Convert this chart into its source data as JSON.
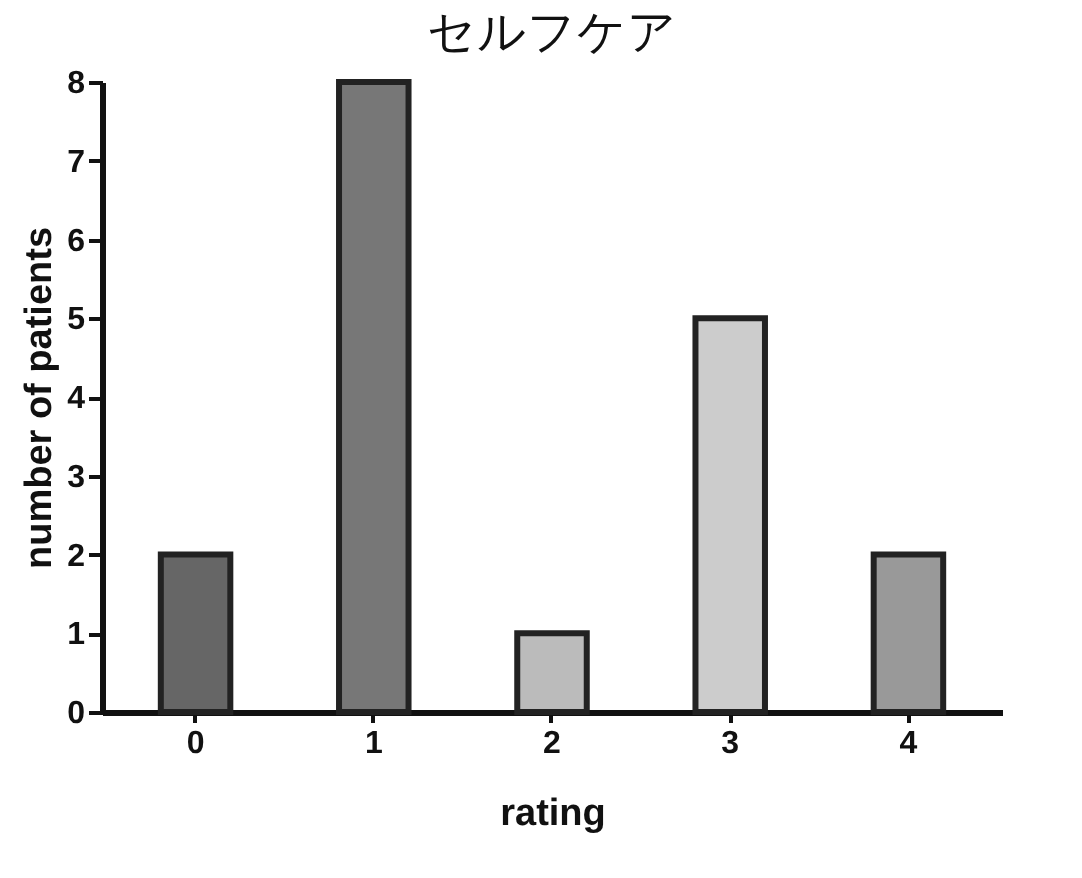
{
  "chart_data": {
    "type": "bar",
    "title": "セルフケア",
    "xlabel": "rating",
    "ylabel": "number of patients",
    "categories": [
      "0",
      "1",
      "2",
      "3",
      "4"
    ],
    "values": [
      2,
      8,
      1,
      5,
      2
    ],
    "colors": [
      "#666666",
      "#777777",
      "#bbbbbb",
      "#cccccc",
      "#999999"
    ],
    "ylim": [
      0,
      8
    ],
    "yticks": [
      0,
      1,
      2,
      3,
      4,
      5,
      6,
      7,
      8
    ],
    "grid": false
  }
}
